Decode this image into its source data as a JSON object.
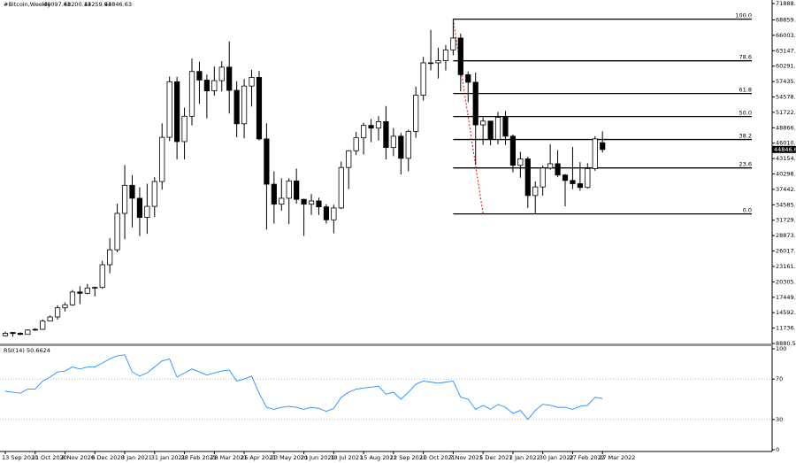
{
  "chart_data": {
    "type": "candlestick",
    "title": "#Bitcoin,Weekly",
    "categories": [
      "13 Sep 2020",
      null,
      null,
      null,
      "11 Oct 2020",
      null,
      null,
      null,
      "8 Nov 2020",
      null,
      null,
      null,
      "6 Dec 2020",
      null,
      null,
      null,
      "3 Jan 2021",
      null,
      null,
      null,
      "31 Jan 2021",
      null,
      null,
      null,
      "28 Feb 2021",
      null,
      null,
      null,
      "28 Mar 2021",
      null,
      null,
      null,
      "25 Apr 2021",
      null,
      null,
      null,
      "23 May 2021",
      null,
      null,
      null,
      "20 Jun 2021",
      null,
      null,
      null,
      "18 Jul 2021",
      null,
      null,
      null,
      "15 Aug 2021",
      null,
      null,
      null,
      "12 Sep 2021",
      null,
      null,
      null,
      "10 Oct 2021",
      null,
      null,
      null,
      "7 Nov 2021",
      null,
      null,
      null,
      "5 Dec 2021",
      null,
      null,
      null,
      "2 Jan 2022",
      null,
      null,
      null,
      "30 Jan 2022",
      null,
      null,
      null,
      "27 Feb 2022",
      null,
      null,
      null,
      "27 Mar 2022"
    ],
    "open": [
      10320,
      10920,
      10770,
      10570,
      11370,
      11500,
      13030,
      13800,
      15490,
      16050,
      18420,
      18180,
      19170,
      19270,
      23480,
      26250,
      33000,
      38200,
      35800,
      32250,
      34300,
      38900,
      47100,
      57400,
      46300,
      51000,
      59300,
      57700,
      55700,
      57600,
      60100,
      55800,
      49600,
      56600,
      58200,
      46800,
      38400,
      34700,
      35800,
      39000,
      35600,
      34700,
      35300,
      34200,
      31800,
      34000,
      41500,
      44600,
      47000,
      49300,
      48800,
      50000,
      45200,
      47300,
      43200,
      48200,
      54900,
      60900,
      60900,
      61300,
      63300,
      65500,
      58700,
      57300,
      49400,
      50100,
      46700,
      50800,
      47300,
      41900,
      43100,
      36300,
      37900,
      41400,
      42200,
      40100,
      39100,
      38500,
      37800,
      41300,
      46097.63
    ],
    "high": [
      11100,
      10990,
      10950,
      11490,
      11720,
      13350,
      14070,
      15960,
      16480,
      18800,
      19500,
      19920,
      19430,
      24200,
      28400,
      34800,
      41950,
      40100,
      37850,
      38500,
      39700,
      49700,
      58350,
      58300,
      52600,
      61700,
      61100,
      58700,
      60200,
      61200,
      64850,
      57500,
      57900,
      59600,
      59400,
      49700,
      40800,
      39500,
      39500,
      41300,
      35700,
      36600,
      35900,
      34700,
      34600,
      42600,
      44700,
      48100,
      49800,
      50500,
      51000,
      52900,
      48800,
      47900,
      48500,
      56500,
      62000,
      67000,
      63700,
      64200,
      69000,
      66300,
      59300,
      59100,
      50800,
      50100,
      51800,
      52000,
      47600,
      44400,
      43500,
      38900,
      41900,
      45800,
      44700,
      40300,
      45300,
      42500,
      42300,
      47300,
      48200.13
    ],
    "low": [
      10200,
      10150,
      10400,
      10530,
      11220,
      11400,
      12980,
      13290,
      14820,
      15870,
      16200,
      18000,
      17600,
      19000,
      21900,
      25800,
      28200,
      30400,
      28800,
      29200,
      32300,
      37400,
      46400,
      43000,
      43000,
      49300,
      53300,
      50600,
      54800,
      55600,
      51500,
      47100,
      46900,
      52800,
      46500,
      30000,
      31100,
      33500,
      31000,
      34800,
      28800,
      32700,
      32700,
      31100,
      29300,
      33800,
      37500,
      43800,
      43900,
      46200,
      46500,
      43000,
      43600,
      40200,
      40800,
      47000,
      53900,
      59500,
      58000,
      59500,
      62300,
      55600,
      53600,
      42000,
      45700,
      45600,
      45800,
      45700,
      40600,
      39600,
      34000,
      32900,
      36300,
      41100,
      39700,
      34300,
      37500,
      37200,
      37600,
      40900,
      44259.93
    ],
    "close": [
      10770,
      10730,
      10570,
      11370,
      11500,
      13030,
      13800,
      15490,
      16050,
      18420,
      18180,
      19170,
      19270,
      23480,
      26250,
      33000,
      38200,
      35800,
      32250,
      34300,
      38900,
      47100,
      57400,
      46300,
      51000,
      59300,
      57700,
      55700,
      57600,
      60100,
      55800,
      49600,
      56600,
      58200,
      46800,
      38400,
      34700,
      35800,
      39000,
      35600,
      34700,
      35300,
      34200,
      31800,
      34000,
      41500,
      44600,
      47000,
      49300,
      48800,
      50000,
      45200,
      47300,
      43200,
      48200,
      54900,
      60900,
      60900,
      61300,
      63300,
      65500,
      58700,
      57300,
      49400,
      50100,
      46700,
      50800,
      47300,
      41900,
      43100,
      36300,
      37900,
      41400,
      42200,
      40100,
      39100,
      38500,
      37800,
      41300,
      46800,
      44846.63
    ],
    "ylim": [
      8880.55,
      71888.59
    ],
    "yticks": [
      8880.55,
      {
        "value": 11736.7,
        "label": "11736.70"
      },
      14592.85,
      {
        "value": 17449,
        "label": "17449.00"
      },
      20305.15,
      {
        "value": 23161.3,
        "label": "23161.30"
      },
      26017.45,
      {
        "value": 28873.6,
        "label": "28873.60"
      },
      31729.75,
      {
        "value": 34585.9,
        "label": "34585.90"
      },
      37442.05,
      {
        "value": 40298.2,
        "label": "40298.20"
      },
      43154.35,
      {
        "value": 46010.5,
        "label": "46010.50"
      },
      48866.65,
      {
        "value": 51722.8,
        "label": "51722.80"
      },
      54578.95,
      {
        "value": 57435.1,
        "label": "57435.10"
      },
      60291.25,
      {
        "value": 63147.4,
        "label": "63147.40"
      },
      66003.55,
      {
        "value": 68859.7,
        "label": "68859.70"
      },
      71888.59
    ],
    "fib_levels": [
      {
        "level": "100.0",
        "price": 69000
      },
      {
        "level": "78.6",
        "price": 61275
      },
      {
        "level": "61.8",
        "price": 55210
      },
      {
        "level": "50.0",
        "price": 50950
      },
      {
        "level": "38.2",
        "price": 46690
      },
      {
        "level": "23.6",
        "price": 41420
      },
      {
        "level": "0.0",
        "price": 32900
      }
    ],
    "rsi": {
      "name": "RSI(14)",
      "color": "#1e90ff",
      "values": [
        58,
        57,
        56,
        60,
        60,
        68,
        72,
        77,
        78,
        82,
        80,
        82,
        82,
        86,
        90,
        93,
        94,
        77,
        73,
        76,
        82,
        88,
        90,
        72,
        76,
        80,
        77,
        74,
        76,
        78,
        79,
        68,
        70,
        73,
        56,
        42,
        40,
        42,
        43,
        42,
        40,
        42,
        41,
        38,
        41,
        52,
        57,
        60,
        61,
        62,
        63,
        55,
        57,
        50,
        57,
        65,
        68,
        67,
        66,
        67,
        68,
        52,
        50,
        40,
        44,
        40,
        45,
        42,
        36,
        39,
        30,
        39,
        45,
        44,
        42,
        42,
        40,
        43,
        44,
        52,
        50.6624
      ],
      "ylim": [
        0,
        100
      ],
      "yticks": [
        100,
        70,
        30,
        0
      ]
    }
  }
}
